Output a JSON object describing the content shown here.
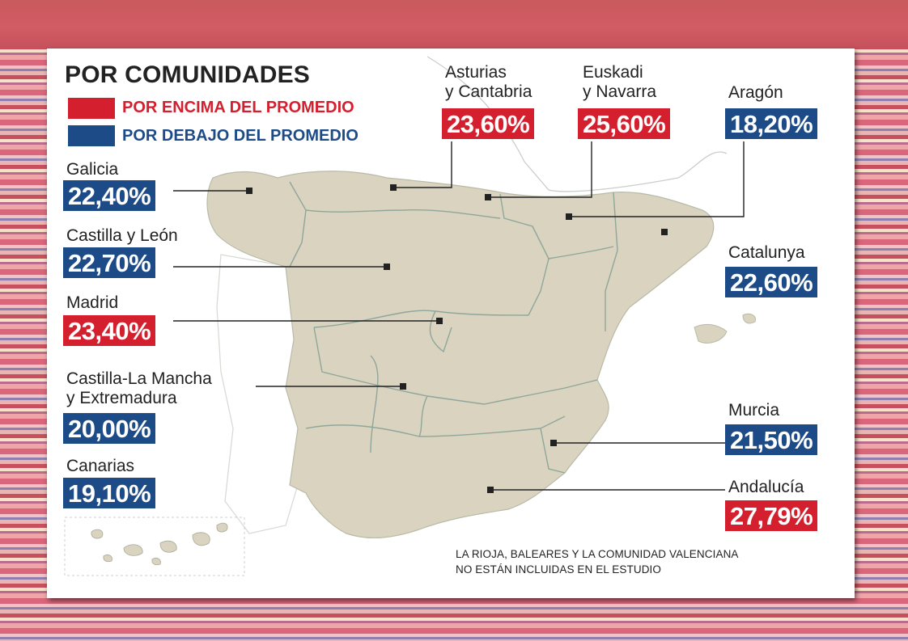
{
  "title": "POR COMUNIDADES",
  "legend": [
    {
      "label": "POR ENCIMA DEL PROMEDIO",
      "color": "#d4202e"
    },
    {
      "label": "POR DEBAJO DEL PROMEDIO",
      "color": "#1d4b88"
    }
  ],
  "regions": [
    {
      "name": "Galicia",
      "value": "22,40%",
      "status": "below"
    },
    {
      "name": "Castilla y León",
      "value": "22,70%",
      "status": "below"
    },
    {
      "name": "Madrid",
      "value": "23,40%",
      "status": "above"
    },
    {
      "name": "Castilla-La Mancha\ny Extremadura",
      "value": "20,00%",
      "status": "below"
    },
    {
      "name": "Canarias",
      "value": "19,10%",
      "status": "below"
    },
    {
      "name": "Asturias\ny Cantabria",
      "value": "23,60%",
      "status": "above"
    },
    {
      "name": "Euskadi\ny Navarra",
      "value": "25,60%",
      "status": "above"
    },
    {
      "name": "Aragón",
      "value": "18,20%",
      "status": "below"
    },
    {
      "name": "Catalunya",
      "value": "22,60%",
      "status": "below"
    },
    {
      "name": "Murcia",
      "value": "21,50%",
      "status": "below"
    },
    {
      "name": "Andalucía",
      "value": "27,79%",
      "status": "above"
    }
  ],
  "note": "LA RIOJA, BALEARES Y LA COMUNIDAD VALENCIANA\nNO ESTÁN INCLUIDAS EN EL ESTUDIO",
  "colors": {
    "above": "#d4202e",
    "below": "#1d4b88",
    "land": "#d9d3c0",
    "border": "#8fa79a"
  }
}
